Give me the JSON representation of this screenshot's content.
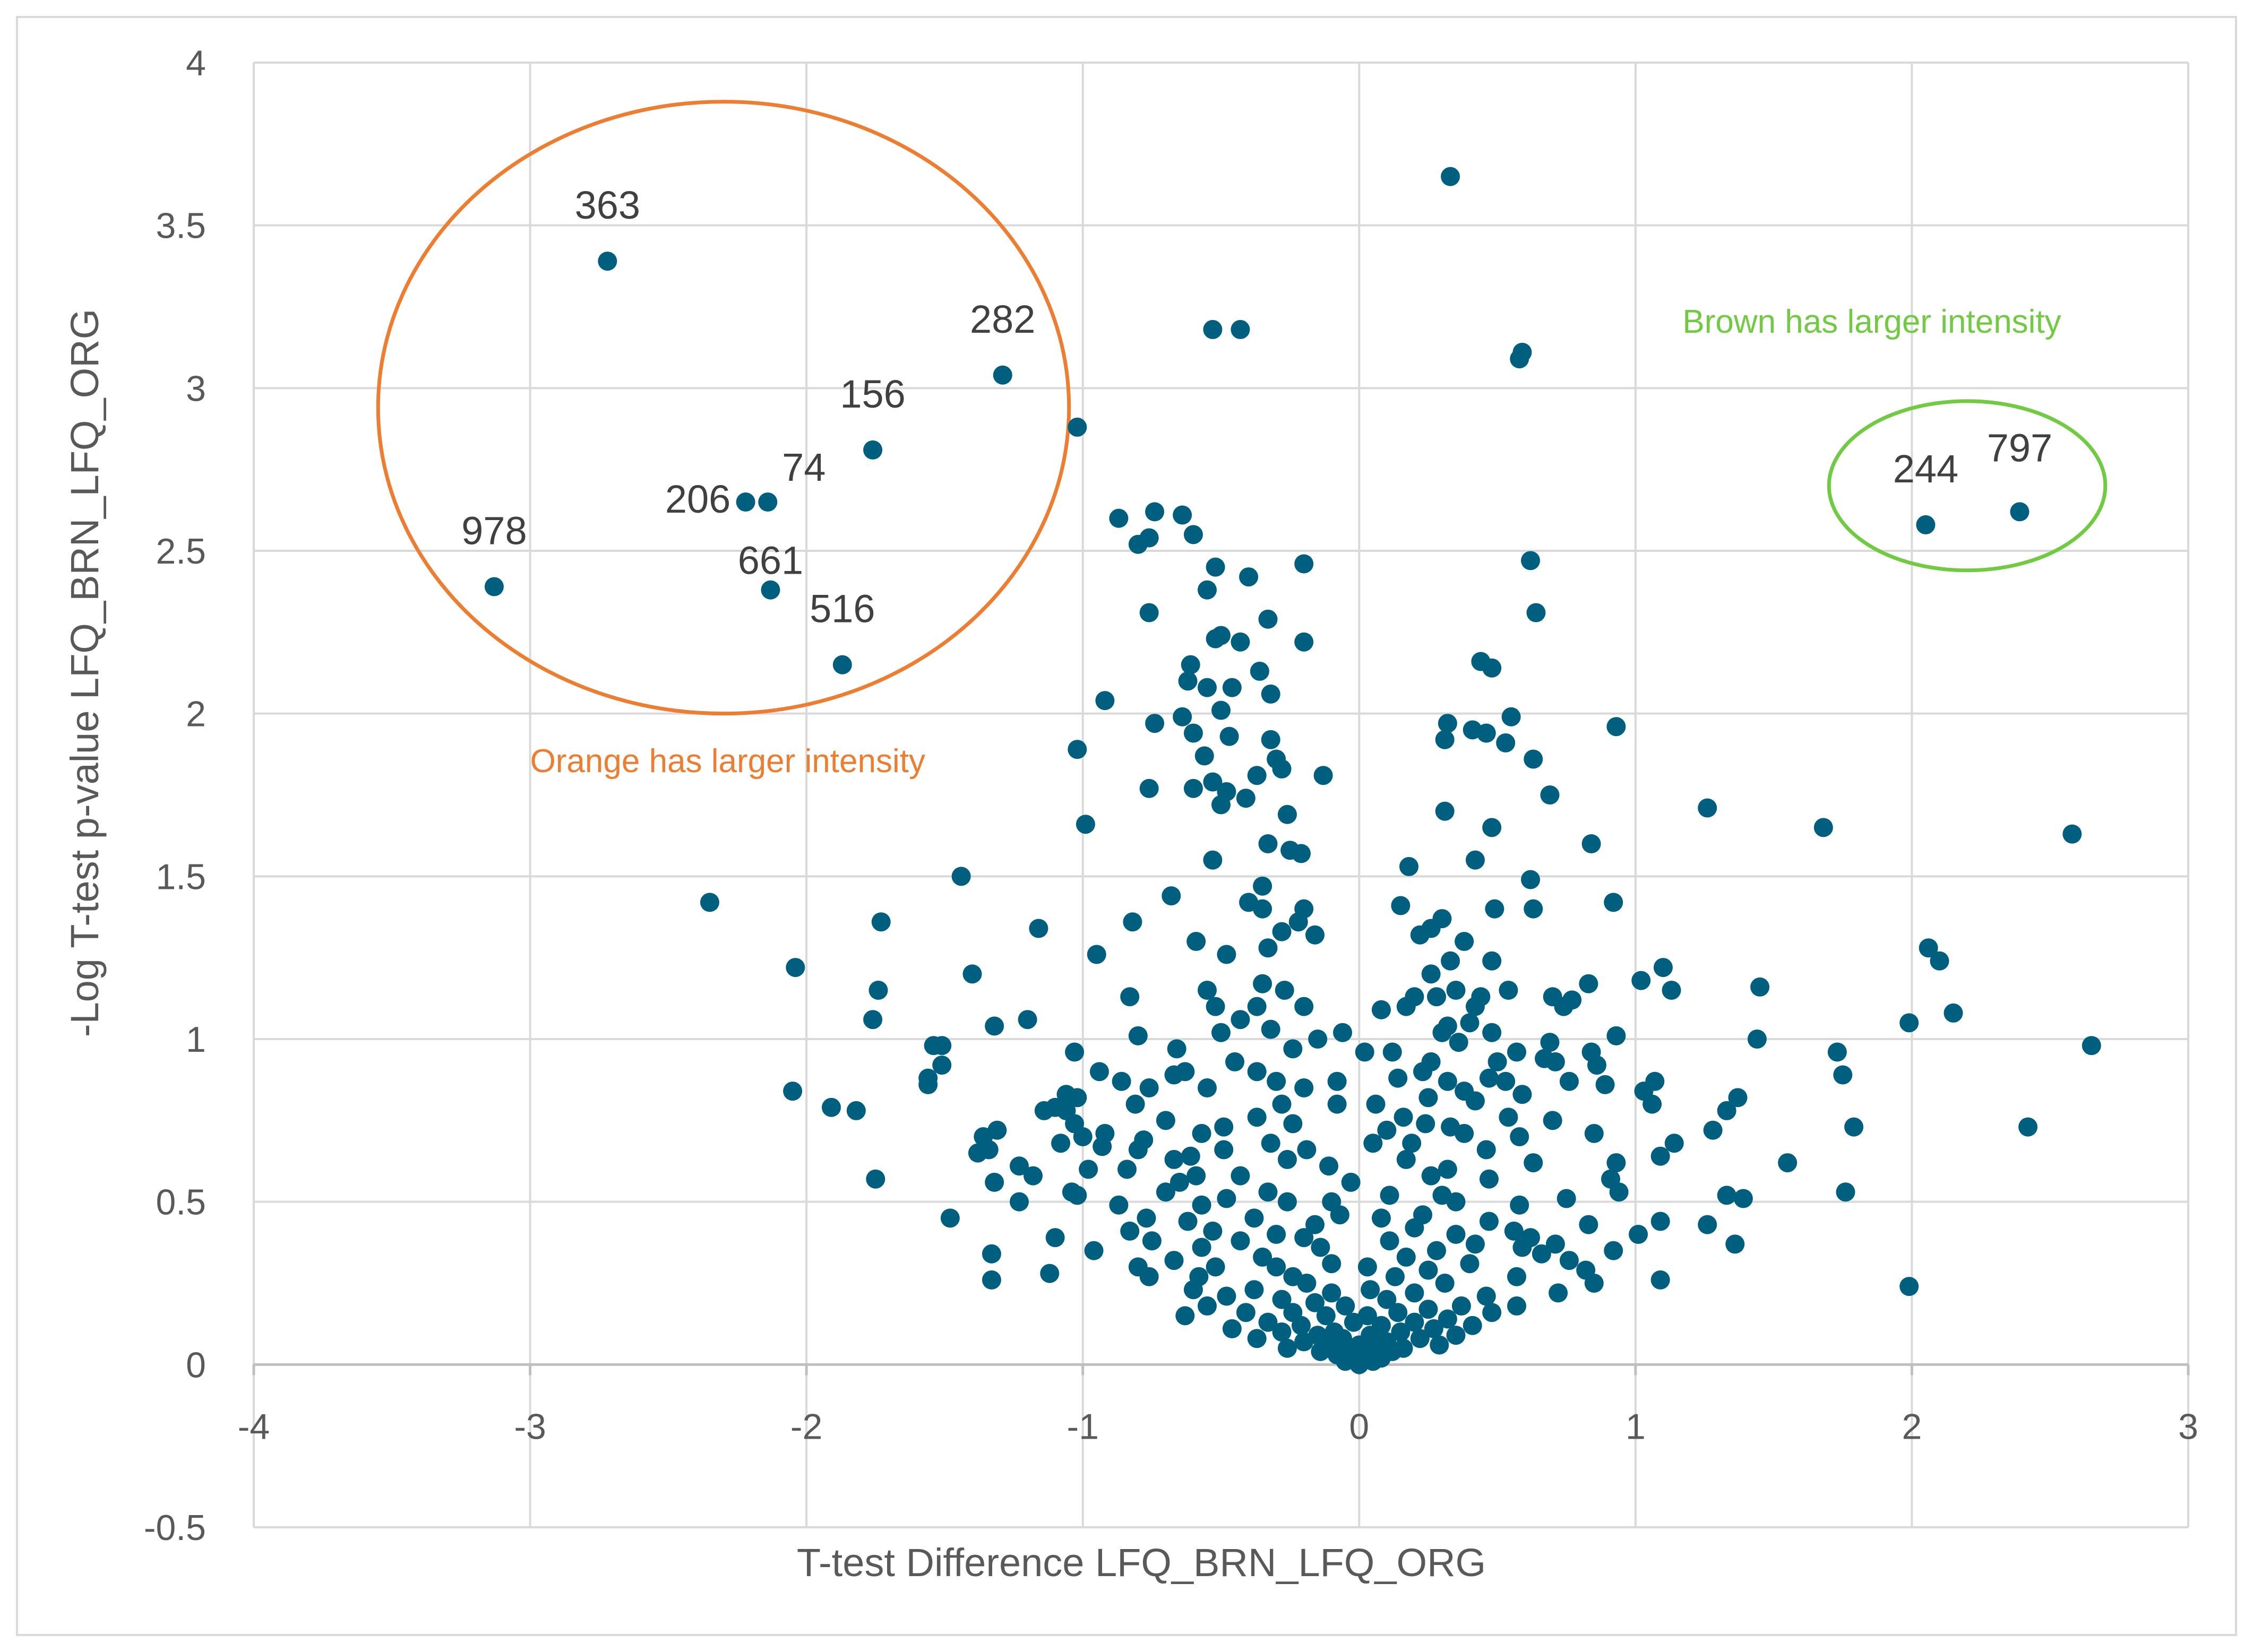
{
  "chart_data": {
    "type": "scatter",
    "title": "",
    "xlabel": "T-test Difference LFQ_BRN_LFQ_ORG",
    "ylabel": "-Log T-test p-value LFQ_BRN_LFQ_ORG",
    "xlim": [
      -4,
      3
    ],
    "ylim": [
      -0.5,
      4
    ],
    "x_ticks": [
      "-4",
      "-3",
      "-2",
      "-1",
      "0",
      "1",
      "2",
      "3"
    ],
    "y_ticks": [
      "-0.5",
      "0",
      "0.5",
      "1",
      "1.5",
      "2",
      "2.5",
      "3",
      "3.5",
      "4"
    ],
    "grid": true,
    "legend": "none",
    "colors": {
      "points": "#005f7f",
      "orange": "#ed7d31",
      "green": "#70ca42",
      "grid": "#d9d9d9"
    },
    "labeled_points": [
      {
        "label": "363",
        "x": -2.72,
        "y": 3.39
      },
      {
        "label": "282",
        "x": -1.29,
        "y": 3.04
      },
      {
        "label": "156",
        "x": -1.76,
        "y": 2.81
      },
      {
        "label": "74",
        "x": -2.14,
        "y": 2.65
      },
      {
        "label": "206",
        "x": -2.22,
        "y": 2.65
      },
      {
        "label": "978",
        "x": -3.13,
        "y": 2.39
      },
      {
        "label": "661",
        "x": -2.13,
        "y": 2.38
      },
      {
        "label": "516",
        "x": -1.87,
        "y": 2.15
      },
      {
        "label": "244",
        "x": 2.05,
        "y": 2.58
      },
      {
        "label": "797",
        "x": 2.39,
        "y": 2.62
      }
    ],
    "annotations": [
      {
        "text": "Orange has larger intensity",
        "color": "#ed7d31"
      },
      {
        "text": "Brown has larger intensity",
        "color": "#70ca42"
      }
    ],
    "points": [
      [
        0.33,
        3.65
      ],
      [
        -0.53,
        3.18
      ],
      [
        -0.43,
        3.18
      ],
      [
        0.59,
        3.11
      ],
      [
        0.58,
        3.09
      ],
      [
        -1.02,
        2.88
      ],
      [
        -0.74,
        2.62
      ],
      [
        -0.64,
        2.61
      ],
      [
        -0.87,
        2.6
      ],
      [
        -0.6,
        2.55
      ],
      [
        -0.76,
        2.54
      ],
      [
        -0.8,
        2.52
      ],
      [
        -0.52,
        2.45
      ],
      [
        0.62,
        2.47
      ],
      [
        -0.2,
        2.46
      ],
      [
        -0.4,
        2.42
      ],
      [
        -0.55,
        2.38
      ],
      [
        0.64,
        2.31
      ],
      [
        -0.76,
        2.31
      ],
      [
        -0.33,
        2.29
      ],
      [
        -0.5,
        2.24
      ],
      [
        -0.52,
        2.23
      ],
      [
        -0.43,
        2.22
      ],
      [
        -0.2,
        2.22
      ],
      [
        0.44,
        2.16
      ],
      [
        -0.61,
        2.15
      ],
      [
        0.48,
        2.14
      ],
      [
        -0.36,
        2.13
      ],
      [
        -0.46,
        2.08
      ],
      [
        -0.62,
        2.1
      ],
      [
        -0.55,
        2.08
      ],
      [
        -0.32,
        2.06
      ],
      [
        -0.92,
        2.04
      ],
      [
        -0.5,
        2.01
      ],
      [
        -0.64,
        1.99
      ],
      [
        0.55,
        1.99
      ],
      [
        -0.74,
        1.97
      ],
      [
        0.32,
        1.97
      ],
      [
        0.41,
        1.95
      ],
      [
        0.93,
        1.96
      ],
      [
        -0.6,
        1.94
      ],
      [
        -0.47,
        1.93
      ],
      [
        0.31,
        1.92
      ],
      [
        0.46,
        1.94
      ],
      [
        -0.32,
        1.92
      ],
      [
        0.53,
        1.91
      ],
      [
        -1.02,
        1.89
      ],
      [
        -0.56,
        1.87
      ],
      [
        -0.3,
        1.86
      ],
      [
        0.63,
        1.86
      ],
      [
        -0.28,
        1.83
      ],
      [
        -0.13,
        1.81
      ],
      [
        -0.37,
        1.81
      ],
      [
        -0.53,
        1.79
      ],
      [
        -0.76,
        1.77
      ],
      [
        -0.6,
        1.77
      ],
      [
        -0.48,
        1.76
      ],
      [
        -0.41,
        1.74
      ],
      [
        -0.5,
        1.72
      ],
      [
        0.69,
        1.75
      ],
      [
        1.26,
        1.71
      ],
      [
        0.31,
        1.7
      ],
      [
        -0.26,
        1.69
      ],
      [
        -0.99,
        1.66
      ],
      [
        0.48,
        1.65
      ],
      [
        1.68,
        1.65
      ],
      [
        2.58,
        1.63
      ],
      [
        -0.33,
        1.6
      ],
      [
        0.84,
        1.6
      ],
      [
        -0.25,
        1.58
      ],
      [
        -0.21,
        1.57
      ],
      [
        -0.53,
        1.55
      ],
      [
        0.42,
        1.55
      ],
      [
        0.18,
        1.53
      ],
      [
        -1.44,
        1.5
      ],
      [
        0.62,
        1.49
      ],
      [
        -0.35,
        1.47
      ],
      [
        -0.68,
        1.44
      ],
      [
        -0.4,
        1.42
      ],
      [
        -0.2,
        1.4
      ],
      [
        -0.35,
        1.4
      ],
      [
        0.92,
        1.42
      ],
      [
        0.15,
        1.41
      ],
      [
        0.49,
        1.4
      ],
      [
        0.63,
        1.4
      ],
      [
        -2.35,
        1.42
      ],
      [
        -1.73,
        1.36
      ],
      [
        -0.22,
        1.36
      ],
      [
        -0.28,
        1.33
      ],
      [
        -0.82,
        1.36
      ],
      [
        0.3,
        1.37
      ],
      [
        0.26,
        1.34
      ],
      [
        0.22,
        1.32
      ],
      [
        0.38,
        1.3
      ],
      [
        -1.16,
        1.34
      ],
      [
        -0.16,
        1.32
      ],
      [
        -0.59,
        1.3
      ],
      [
        -0.33,
        1.28
      ],
      [
        -0.48,
        1.26
      ],
      [
        -0.95,
        1.26
      ],
      [
        0.33,
        1.24
      ],
      [
        0.48,
        1.24
      ],
      [
        2.06,
        1.28
      ],
      [
        2.1,
        1.24
      ],
      [
        -2.04,
        1.22
      ],
      [
        1.1,
        1.22
      ],
      [
        0.26,
        1.2
      ],
      [
        -1.4,
        1.2
      ],
      [
        1.02,
        1.18
      ],
      [
        -0.35,
        1.17
      ],
      [
        0.83,
        1.17
      ],
      [
        0.35,
        1.15
      ],
      [
        -1.74,
        1.15
      ],
      [
        -0.55,
        1.15
      ],
      [
        -0.27,
        1.15
      ],
      [
        0.54,
        1.15
      ],
      [
        -0.83,
        1.13
      ],
      [
        0.2,
        1.13
      ],
      [
        0.28,
        1.13
      ],
      [
        0.44,
        1.13
      ],
      [
        1.13,
        1.15
      ],
      [
        1.45,
        1.16
      ],
      [
        0.7,
        1.13
      ],
      [
        0.77,
        1.12
      ],
      [
        0.74,
        1.1
      ],
      [
        0.17,
        1.1
      ],
      [
        -0.52,
        1.1
      ],
      [
        -0.37,
        1.1
      ],
      [
        -0.2,
        1.1
      ],
      [
        0.42,
        1.1
      ],
      [
        0.08,
        1.09
      ],
      [
        2.15,
        1.08
      ],
      [
        -1.76,
        1.06
      ],
      [
        -1.2,
        1.06
      ],
      [
        -0.43,
        1.06
      ],
      [
        0.4,
        1.05
      ],
      [
        1.99,
        1.05
      ],
      [
        0.32,
        1.04
      ],
      [
        -0.32,
        1.03
      ],
      [
        -0.5,
        1.02
      ],
      [
        -0.06,
        1.02
      ],
      [
        0.3,
        1.02
      ],
      [
        -1.32,
        1.04
      ],
      [
        0.48,
        1.02
      ],
      [
        -0.8,
        1.01
      ],
      [
        0.93,
        1.01
      ],
      [
        0.69,
        0.99
      ],
      [
        0.36,
        0.99
      ],
      [
        -0.15,
        1.0
      ],
      [
        1.44,
        1.0
      ],
      [
        -1.51,
        0.98
      ],
      [
        -1.54,
        0.98
      ],
      [
        2.65,
        0.98
      ],
      [
        -0.24,
        0.97
      ],
      [
        -0.66,
        0.97
      ],
      [
        -1.03,
        0.96
      ],
      [
        0.12,
        0.96
      ],
      [
        0.02,
        0.96
      ],
      [
        0.57,
        0.96
      ],
      [
        0.84,
        0.96
      ],
      [
        1.73,
        0.96
      ],
      [
        0.67,
        0.94
      ],
      [
        0.5,
        0.93
      ],
      [
        -0.45,
        0.93
      ],
      [
        0.26,
        0.93
      ],
      [
        0.71,
        0.93
      ],
      [
        -1.51,
        0.92
      ],
      [
        0.23,
        0.9
      ],
      [
        0.86,
        0.92
      ],
      [
        -0.63,
        0.9
      ],
      [
        -0.37,
        0.9
      ],
      [
        -0.67,
        0.89
      ],
      [
        -0.94,
        0.9
      ],
      [
        1.75,
        0.89
      ],
      [
        -1.56,
        0.88
      ],
      [
        0.14,
        0.88
      ],
      [
        0.47,
        0.88
      ],
      [
        0.32,
        0.87
      ],
      [
        -0.3,
        0.87
      ],
      [
        -0.86,
        0.87
      ],
      [
        0.53,
        0.87
      ],
      [
        -0.08,
        0.87
      ],
      [
        0.76,
        0.87
      ],
      [
        1.07,
        0.87
      ],
      [
        -0.55,
        0.85
      ],
      [
        0.89,
        0.86
      ],
      [
        -1.56,
        0.86
      ],
      [
        -0.2,
        0.85
      ],
      [
        -0.76,
        0.85
      ],
      [
        0.38,
        0.84
      ],
      [
        -1.06,
        0.83
      ],
      [
        1.03,
        0.84
      ],
      [
        0.59,
        0.83
      ],
      [
        0.25,
        0.82
      ],
      [
        -2.05,
        0.84
      ],
      [
        -1.02,
        0.82
      ],
      [
        1.37,
        0.82
      ],
      [
        -0.81,
        0.8
      ],
      [
        -0.28,
        0.8
      ],
      [
        0.06,
        0.8
      ],
      [
        0.42,
        0.81
      ],
      [
        -0.08,
        0.8
      ],
      [
        1.06,
        0.8
      ],
      [
        -1.91,
        0.79
      ],
      [
        -1.1,
        0.79
      ],
      [
        -1.06,
        0.78
      ],
      [
        -1.82,
        0.78
      ],
      [
        -1.14,
        0.78
      ],
      [
        1.33,
        0.78
      ],
      [
        -0.37,
        0.76
      ],
      [
        0.16,
        0.76
      ],
      [
        -0.7,
        0.75
      ],
      [
        0.54,
        0.76
      ],
      [
        0.7,
        0.75
      ],
      [
        -0.24,
        0.74
      ],
      [
        -1.03,
        0.74
      ],
      [
        0.24,
        0.74
      ],
      [
        -0.49,
        0.73
      ],
      [
        0.33,
        0.73
      ],
      [
        2.42,
        0.73
      ],
      [
        1.79,
        0.73
      ],
      [
        -1.31,
        0.72
      ],
      [
        1.28,
        0.72
      ],
      [
        0.1,
        0.72
      ],
      [
        -0.57,
        0.71
      ],
      [
        0.38,
        0.71
      ],
      [
        -0.92,
        0.71
      ],
      [
        0.85,
        0.71
      ],
      [
        -0.78,
        0.69
      ],
      [
        0.58,
        0.7
      ],
      [
        -1.0,
        0.7
      ],
      [
        -1.36,
        0.7
      ],
      [
        -0.32,
        0.68
      ],
      [
        0.05,
        0.68
      ],
      [
        0.19,
        0.68
      ],
      [
        1.14,
        0.68
      ],
      [
        -1.08,
        0.68
      ],
      [
        -0.93,
        0.67
      ],
      [
        -0.19,
        0.66
      ],
      [
        0.46,
        0.66
      ],
      [
        -0.49,
        0.66
      ],
      [
        -0.8,
        0.66
      ],
      [
        -1.34,
        0.66
      ],
      [
        -1.38,
        0.65
      ],
      [
        -0.61,
        0.64
      ],
      [
        1.09,
        0.64
      ],
      [
        -0.67,
        0.63
      ],
      [
        0.63,
        0.62
      ],
      [
        0.17,
        0.63
      ],
      [
        -0.26,
        0.63
      ],
      [
        0.93,
        0.62
      ],
      [
        1.55,
        0.62
      ],
      [
        -1.23,
        0.61
      ],
      [
        -0.11,
        0.61
      ],
      [
        -0.84,
        0.6
      ],
      [
        -0.98,
        0.6
      ],
      [
        0.32,
        0.6
      ],
      [
        -0.43,
        0.58
      ],
      [
        -0.59,
        0.58
      ],
      [
        0.26,
        0.58
      ],
      [
        -1.18,
        0.58
      ],
      [
        0.47,
        0.57
      ],
      [
        -0.65,
        0.56
      ],
      [
        -1.32,
        0.56
      ],
      [
        -1.75,
        0.57
      ],
      [
        0.91,
        0.57
      ],
      [
        -0.03,
        0.56
      ],
      [
        1.76,
        0.53
      ],
      [
        0.94,
        0.53
      ],
      [
        -0.33,
        0.53
      ],
      [
        -0.7,
        0.53
      ],
      [
        0.3,
        0.52
      ],
      [
        -1.04,
        0.53
      ],
      [
        0.11,
        0.52
      ],
      [
        -1.02,
        0.52
      ],
      [
        -0.48,
        0.51
      ],
      [
        0.75,
        0.51
      ],
      [
        -1.23,
        0.5
      ],
      [
        1.33,
        0.52
      ],
      [
        1.39,
        0.51
      ],
      [
        -0.26,
        0.5
      ],
      [
        -0.1,
        0.5
      ],
      [
        0.35,
        0.5
      ],
      [
        -0.57,
        0.49
      ],
      [
        -0.87,
        0.49
      ],
      [
        0.58,
        0.49
      ],
      [
        -1.48,
        0.45
      ],
      [
        -0.07,
        0.46
      ],
      [
        0.23,
        0.46
      ],
      [
        -0.77,
        0.45
      ],
      [
        -0.38,
        0.45
      ],
      [
        0.08,
        0.45
      ],
      [
        -0.62,
        0.44
      ],
      [
        0.47,
        0.44
      ],
      [
        1.09,
        0.44
      ],
      [
        1.26,
        0.43
      ],
      [
        0.83,
        0.43
      ],
      [
        -0.16,
        0.43
      ],
      [
        0.2,
        0.42
      ],
      [
        -0.53,
        0.41
      ],
      [
        0.56,
        0.41
      ],
      [
        0.35,
        0.4
      ],
      [
        -0.83,
        0.41
      ],
      [
        -0.3,
        0.4
      ],
      [
        -1.1,
        0.39
      ],
      [
        -0.2,
        0.39
      ],
      [
        0.62,
        0.39
      ],
      [
        1.01,
        0.4
      ],
      [
        0.11,
        0.38
      ],
      [
        -0.43,
        0.38
      ],
      [
        -0.75,
        0.38
      ],
      [
        0.42,
        0.37
      ],
      [
        0.71,
        0.37
      ],
      [
        -0.57,
        0.36
      ],
      [
        1.36,
        0.37
      ],
      [
        -0.14,
        0.36
      ],
      [
        0.28,
        0.35
      ],
      [
        0.59,
        0.36
      ],
      [
        0.92,
        0.35
      ],
      [
        -1.33,
        0.34
      ],
      [
        -0.96,
        0.35
      ],
      [
        0.66,
        0.34
      ],
      [
        0.17,
        0.33
      ],
      [
        -0.35,
        0.33
      ],
      [
        -0.67,
        0.32
      ],
      [
        0.76,
        0.32
      ],
      [
        0.4,
        0.31
      ],
      [
        -0.1,
        0.31
      ],
      [
        -0.52,
        0.3
      ],
      [
        0.03,
        0.3
      ],
      [
        -0.8,
        0.3
      ],
      [
        -0.3,
        0.3
      ],
      [
        0.25,
        0.29
      ],
      [
        0.82,
        0.29
      ],
      [
        -1.12,
        0.28
      ],
      [
        -0.76,
        0.27
      ],
      [
        -0.58,
        0.27
      ],
      [
        -0.24,
        0.27
      ],
      [
        0.13,
        0.27
      ],
      [
        0.57,
        0.27
      ],
      [
        1.09,
        0.26
      ],
      [
        -1.33,
        0.26
      ],
      [
        0.85,
        0.25
      ],
      [
        -0.19,
        0.25
      ],
      [
        0.31,
        0.25
      ],
      [
        -0.6,
        0.23
      ],
      [
        -0.38,
        0.23
      ],
      [
        0.04,
        0.23
      ],
      [
        1.99,
        0.24
      ],
      [
        0.72,
        0.22
      ],
      [
        -0.1,
        0.22
      ],
      [
        0.2,
        0.22
      ],
      [
        -0.48,
        0.21
      ],
      [
        0.46,
        0.21
      ],
      [
        -0.28,
        0.2
      ],
      [
        0.1,
        0.2
      ],
      [
        -0.16,
        0.19
      ],
      [
        -0.55,
        0.18
      ],
      [
        0.37,
        0.18
      ],
      [
        0.57,
        0.18
      ],
      [
        -0.05,
        0.18
      ],
      [
        0.25,
        0.17
      ],
      [
        -0.41,
        0.16
      ],
      [
        0.14,
        0.16
      ],
      [
        -0.24,
        0.16
      ],
      [
        0.48,
        0.16
      ],
      [
        -0.63,
        0.15
      ],
      [
        -0.12,
        0.15
      ],
      [
        0.03,
        0.15
      ],
      [
        0.32,
        0.14
      ],
      [
        -0.33,
        0.13
      ],
      [
        0.2,
        0.13
      ],
      [
        -0.02,
        0.13
      ],
      [
        0.41,
        0.12
      ],
      [
        -0.21,
        0.12
      ],
      [
        0.08,
        0.12
      ],
      [
        -0.46,
        0.11
      ],
      [
        0.27,
        0.11
      ],
      [
        -0.09,
        0.1
      ],
      [
        0.15,
        0.1
      ],
      [
        -0.28,
        0.1
      ],
      [
        0.35,
        0.09
      ],
      [
        -0.15,
        0.09
      ],
      [
        0.04,
        0.09
      ],
      [
        -0.37,
        0.08
      ],
      [
        0.22,
        0.08
      ],
      [
        -0.06,
        0.08
      ],
      [
        0.1,
        0.07
      ],
      [
        -0.2,
        0.07
      ],
      [
        0.29,
        0.06
      ],
      [
        -0.11,
        0.06
      ],
      [
        0.0,
        0.06
      ],
      [
        0.16,
        0.05
      ],
      [
        -0.26,
        0.05
      ],
      [
        0.06,
        0.05
      ],
      [
        -0.03,
        0.04
      ],
      [
        0.12,
        0.04
      ],
      [
        -0.14,
        0.04
      ],
      [
        0.03,
        0.03
      ],
      [
        -0.08,
        0.03
      ],
      [
        0.08,
        0.02
      ],
      [
        -0.01,
        0.02
      ],
      [
        0.05,
        0.01
      ],
      [
        -0.05,
        0.01
      ],
      [
        0.01,
        0.01
      ],
      [
        0.0,
        0.0
      ]
    ]
  }
}
